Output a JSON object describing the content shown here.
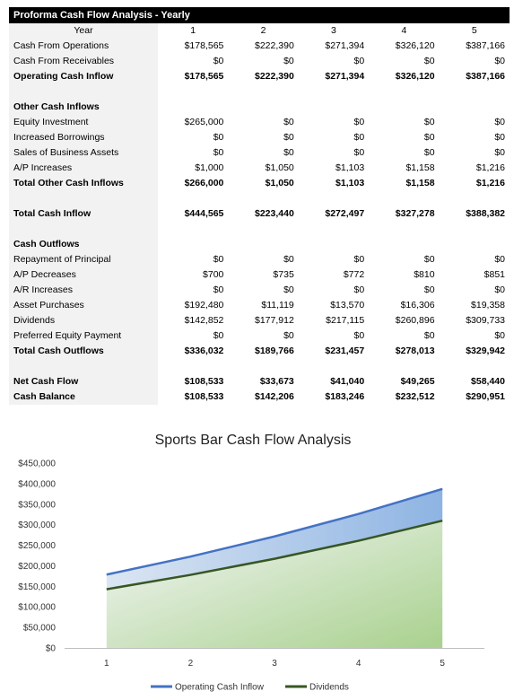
{
  "sheet": {
    "title": "Proforma Cash Flow Analysis - Yearly",
    "year_label": "Year",
    "years": [
      "1",
      "2",
      "3",
      "4",
      "5"
    ],
    "rows": [
      {
        "label": "Cash From Operations",
        "values": [
          "$178,565",
          "$222,390",
          "$271,394",
          "$326,120",
          "$387,166"
        ],
        "style": "normal"
      },
      {
        "label": "Cash From Receivables",
        "values": [
          "$0",
          "$0",
          "$0",
          "$0",
          "$0"
        ],
        "style": "normal"
      },
      {
        "label": "Operating Cash Inflow",
        "values": [
          "$178,565",
          "$222,390",
          "$271,394",
          "$326,120",
          "$387,166"
        ],
        "style": "bold"
      },
      {
        "label": "",
        "values": [
          "",
          "",
          "",
          "",
          ""
        ],
        "style": "blank"
      },
      {
        "label": "Other Cash Inflows",
        "values": [
          "",
          "",
          "",
          "",
          ""
        ],
        "style": "section"
      },
      {
        "label": "Equity Investment",
        "values": [
          "$265,000",
          "$0",
          "$0",
          "$0",
          "$0"
        ],
        "style": "normal"
      },
      {
        "label": "Increased Borrowings",
        "values": [
          "$0",
          "$0",
          "$0",
          "$0",
          "$0"
        ],
        "style": "normal"
      },
      {
        "label": "Sales of Business Assets",
        "values": [
          "$0",
          "$0",
          "$0",
          "$0",
          "$0"
        ],
        "style": "normal"
      },
      {
        "label": "A/P Increases",
        "values": [
          "$1,000",
          "$1,050",
          "$1,103",
          "$1,158",
          "$1,216"
        ],
        "style": "normal"
      },
      {
        "label": "Total Other Cash Inflows",
        "values": [
          "$266,000",
          "$1,050",
          "$1,103",
          "$1,158",
          "$1,216"
        ],
        "style": "bold"
      },
      {
        "label": "",
        "values": [
          "",
          "",
          "",
          "",
          ""
        ],
        "style": "blank"
      },
      {
        "label": "Total Cash Inflow",
        "values": [
          "$444,565",
          "$223,440",
          "$272,497",
          "$327,278",
          "$388,382"
        ],
        "style": "bold"
      },
      {
        "label": "",
        "values": [
          "",
          "",
          "",
          "",
          ""
        ],
        "style": "blank"
      },
      {
        "label": "Cash Outflows",
        "values": [
          "",
          "",
          "",
          "",
          ""
        ],
        "style": "section"
      },
      {
        "label": "Repayment of Principal",
        "values": [
          "$0",
          "$0",
          "$0",
          "$0",
          "$0"
        ],
        "style": "normal"
      },
      {
        "label": "A/P Decreases",
        "values": [
          "$700",
          "$735",
          "$772",
          "$810",
          "$851"
        ],
        "style": "normal"
      },
      {
        "label": "A/R Increases",
        "values": [
          "$0",
          "$0",
          "$0",
          "$0",
          "$0"
        ],
        "style": "normal"
      },
      {
        "label": "Asset Purchases",
        "values": [
          "$192,480",
          "$11,119",
          "$13,570",
          "$16,306",
          "$19,358"
        ],
        "style": "normal"
      },
      {
        "label": "Dividends",
        "values": [
          "$142,852",
          "$177,912",
          "$217,115",
          "$260,896",
          "$309,733"
        ],
        "style": "normal"
      },
      {
        "label": "Preferred Equity Payment",
        "values": [
          "$0",
          "$0",
          "$0",
          "$0",
          "$0"
        ],
        "style": "normal"
      },
      {
        "label": "Total Cash Outflows",
        "values": [
          "$336,032",
          "$189,766",
          "$231,457",
          "$278,013",
          "$329,942"
        ],
        "style": "bold"
      },
      {
        "label": "",
        "values": [
          "",
          "",
          "",
          "",
          ""
        ],
        "style": "blank"
      },
      {
        "label": "Net Cash Flow",
        "values": [
          "$108,533",
          "$33,673",
          "$41,040",
          "$49,265",
          "$58,440"
        ],
        "style": "bold"
      },
      {
        "label": "Cash Balance",
        "values": [
          "$108,533",
          "$142,206",
          "$183,246",
          "$232,512",
          "$290,951"
        ],
        "style": "bold"
      }
    ]
  },
  "chart_data": {
    "type": "area",
    "title": "Sports Bar Cash Flow Analysis",
    "x": [
      1,
      2,
      3,
      4,
      5
    ],
    "x_tick_labels": [
      "1",
      "2",
      "3",
      "4",
      "5"
    ],
    "ylim": [
      0,
      450000
    ],
    "y_ticks": [
      0,
      50000,
      100000,
      150000,
      200000,
      250000,
      300000,
      350000,
      400000,
      450000
    ],
    "y_tick_labels": [
      "$0",
      "$50,000",
      "$100,000",
      "$150,000",
      "$200,000",
      "$250,000",
      "$300,000",
      "$350,000",
      "$400,000",
      "$450,000"
    ],
    "grid": false,
    "legend_position": "bottom",
    "series": [
      {
        "name": "Operating Cash Inflow",
        "values": [
          178565,
          222390,
          271394,
          326120,
          387166
        ],
        "color": "#4472c4"
      },
      {
        "name": "Dividends",
        "values": [
          142852,
          177912,
          217115,
          260896,
          309733
        ],
        "color": "#375623"
      }
    ],
    "fill_colors": {
      "top_band": "#8eb4e3",
      "lower_area": "#a9d18e"
    }
  }
}
